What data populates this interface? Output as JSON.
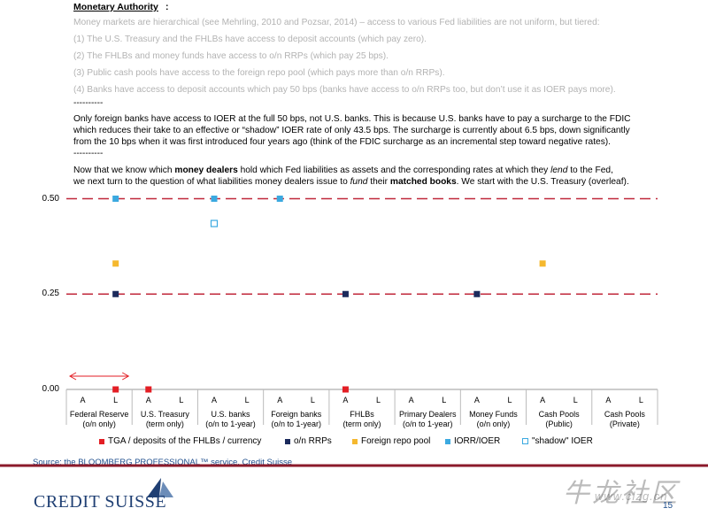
{
  "text": {
    "heading": "Monetary Authority",
    "heading_colon": ":",
    "grey_lines": [
      "Money markets are hierarchical (see Mehrling, 2010 and Pozsar, 2014) – access to various Fed liabilities are not uniform, but tiered:",
      "(1) The U.S. Treasury and the FHLBs have access to deposit accounts (which pay zero).",
      "(2) The FHLBs and money funds have access to o/n RRPs (which pay 25 bps).",
      "(3) Public cash pools have access to the foreign repo pool (which pays more than o/n RRPs).",
      "(4) Banks have access to deposit accounts which pay 50 bps (banks have access to o/n RRPs too, but don’t use it as IOER pays more)."
    ],
    "separator": "----------",
    "para1": [
      "Only foreign banks have access to IOER at the full 50 bps, not U.S. banks. This is because U.S. banks have to pay a surcharge to the FDIC",
      "which reduces their take to an effective or “shadow” IOER rate of only 43.5 bps. The surcharge is currently about 6.5 bps, down significantly",
      "from the 10 bps when it was first introduced four years ago (think of the FDIC surcharge as an incremental step toward negative rates)."
    ],
    "para2_line1": {
      "a": "Now that we know which ",
      "b": "money dealers",
      "c": " hold which Fed liabilities as assets and the corresponding rates at which they ",
      "d": "lend",
      "e": " to the Fed,"
    },
    "para2_line2": {
      "a": "we next turn to the question of what liabilities money dealers issue to ",
      "b": "fund",
      "c": " their ",
      "d": "matched books",
      "e": ". We start with the U.S. Treasury (overleaf)."
    },
    "source": "Source: the BLOOMBERG PROFESSIONAL™ service, Credit Suisse",
    "logo": "CREDIT SUISSE",
    "page_number": "15",
    "watermark": "牛龙社区",
    "watermark_url": "www.clzg.cn"
  },
  "chart_data": {
    "type": "scatter",
    "y_ticks": [
      "0.50",
      "0.25",
      "0.00"
    ],
    "ylim": [
      0,
      0.5
    ],
    "reference_lines": [
      0.5,
      0.25
    ],
    "reference_line_color": "#c0283b",
    "categories": [
      "Federal Reserve\n(o/n only)",
      "U.S. Treasury\n(term only)",
      "U.S. banks\n(o/n to 1-year)",
      "Foreign banks\n(o/n to 1-year)",
      "FHLBs\n(term only)",
      "Primary Dealers\n(o/n to 1-year)",
      "Money Funds\n(o/n only)",
      "Cash Pools\n(Public)",
      "Cash Pools\n(Private)"
    ],
    "sub_labels": [
      "A",
      "L"
    ],
    "series": [
      {
        "name": "TGA / deposits of the FHLBs / currency",
        "color": "#e31e24",
        "marker": "filled",
        "points": [
          {
            "cat": 0,
            "side": "L",
            "y": 0.0
          },
          {
            "cat": 1,
            "side": "A",
            "y": 0.0
          },
          {
            "cat": 4,
            "side": "A",
            "y": 0.0
          }
        ]
      },
      {
        "name": "o/n RRPs",
        "color": "#1b2a5c",
        "marker": "filled",
        "points": [
          {
            "cat": 0,
            "side": "L",
            "y": 0.25
          },
          {
            "cat": 4,
            "side": "A",
            "y": 0.25
          },
          {
            "cat": 6,
            "side": "A",
            "y": 0.25
          }
        ]
      },
      {
        "name": "Foreign repo pool",
        "color": "#f5b82e",
        "marker": "filled",
        "points": [
          {
            "cat": 0,
            "side": "L",
            "y": 0.33
          },
          {
            "cat": 7,
            "side": "A",
            "y": 0.33
          }
        ]
      },
      {
        "name": "IORR/IOER",
        "color": "#3ba9e0",
        "marker": "filled",
        "points": [
          {
            "cat": 0,
            "side": "L",
            "y": 0.5
          },
          {
            "cat": 2,
            "side": "A",
            "y": 0.5
          },
          {
            "cat": 3,
            "side": "A",
            "y": 0.5
          }
        ]
      },
      {
        "name": "\"shadow\" IOER",
        "color": "#3ba9e0",
        "marker": "hollow",
        "points": [
          {
            "cat": 2,
            "side": "A",
            "y": 0.435
          }
        ]
      }
    ],
    "arrow_color": "#e31e24"
  }
}
